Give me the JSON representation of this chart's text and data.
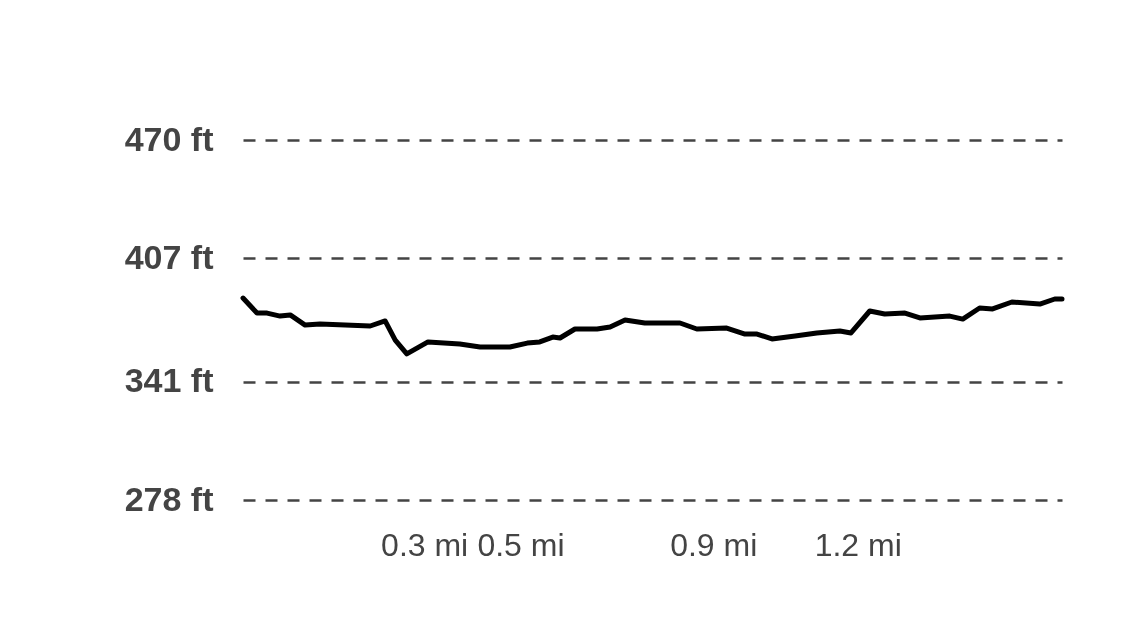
{
  "chart_data": {
    "type": "line",
    "x": [
      -0.076,
      -0.047,
      -0.026,
      0.001,
      0.022,
      0.053,
      0.084,
      0.188,
      0.219,
      0.24,
      0.264,
      0.308,
      0.374,
      0.416,
      0.478,
      0.514,
      0.54,
      0.567,
      0.582,
      0.613,
      0.659,
      0.686,
      0.717,
      0.758,
      0.831,
      0.866,
      0.928,
      0.966,
      0.991,
      1.022,
      1.07,
      1.115,
      1.163,
      1.186,
      1.225,
      1.256,
      1.298,
      1.329,
      1.391,
      1.418,
      1.453,
      1.48,
      1.52,
      1.578,
      1.609,
      1.624
    ],
    "series": [
      {
        "color": "#000000",
        "values": [
          385.7,
          377.7,
          377.7,
          376.1,
          376.7,
          371.3,
          371.9,
          370.8,
          373.5,
          363.3,
          355.9,
          362.3,
          361.2,
          359.6,
          359.6,
          361.7,
          362.3,
          364.9,
          364.4,
          369.2,
          369.2,
          370.3,
          374.0,
          372.4,
          372.4,
          369.2,
          369.7,
          366.5,
          366.5,
          363.9,
          365.5,
          367.1,
          368.1,
          367.1,
          378.8,
          377.2,
          377.7,
          375.1,
          376.1,
          374.5,
          380.4,
          379.9,
          383.6,
          382.5,
          385.2,
          385.2
        ]
      }
    ],
    "xlim": [
      -0.076,
      1.624
    ],
    "xticks": [
      {
        "value": 0.3,
        "label": "0.3 mi"
      },
      {
        "value": 0.5,
        "label": "0.5 mi"
      },
      {
        "value": 0.9,
        "label": "0.9 mi"
      },
      {
        "value": 1.2,
        "label": "1.2 mi"
      }
    ],
    "ylim": [
      278,
      470
    ],
    "yticks": [
      {
        "value": 278,
        "label": "278 ft"
      },
      {
        "value": 341,
        "label": "341 ft"
      },
      {
        "value": 407,
        "label": "407 ft"
      },
      {
        "value": 470,
        "label": "470 ft"
      }
    ],
    "grid": "y",
    "line_style": "solid",
    "marker": "none"
  }
}
